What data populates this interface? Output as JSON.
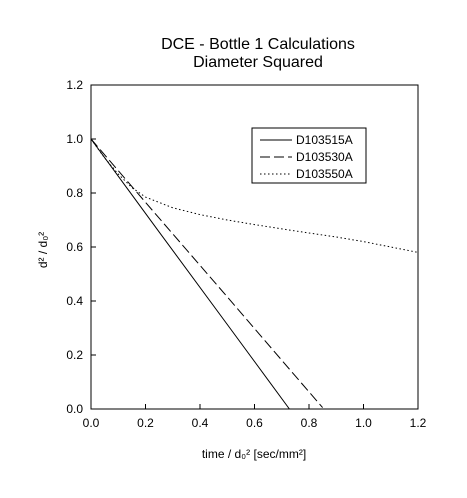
{
  "chart_data": {
    "type": "line",
    "title": "DCE - Bottle 1 Calculations",
    "subtitle": "Diameter Squared",
    "xlabel": "time / d₀² [sec/mm²]",
    "ylabel": "d² / d₀²",
    "xlim": [
      0.0,
      1.2
    ],
    "ylim": [
      0.0,
      1.2
    ],
    "xticks": [
      "0.0",
      "0.2",
      "0.4",
      "0.6",
      "0.8",
      "1.0",
      "1.2"
    ],
    "yticks": [
      "0.0",
      "0.2",
      "0.4",
      "0.6",
      "0.8",
      "1.0",
      "1.2"
    ],
    "grid": false,
    "legend_position": "top-right",
    "series": [
      {
        "name": "D103515A",
        "style": "solid",
        "color": "#000000",
        "x": [
          0.0,
          0.25,
          0.5,
          0.728
        ],
        "y": [
          1.0,
          0.656,
          0.313,
          0.0
        ]
      },
      {
        "name": "D103530A",
        "style": "long-dash",
        "color": "#000000",
        "x": [
          0.0,
          0.25,
          0.5,
          0.75,
          0.85
        ],
        "y": [
          1.0,
          0.707,
          0.415,
          0.122,
          0.005
        ]
      },
      {
        "name": "D103550A",
        "style": "dotted",
        "color": "#000000",
        "x": [
          0.0,
          0.05,
          0.1,
          0.15,
          0.2,
          0.3,
          0.4,
          0.5,
          0.6,
          0.7,
          0.8,
          0.9,
          1.0,
          1.1,
          1.2
        ],
        "y": [
          1.0,
          0.93,
          0.87,
          0.82,
          0.785,
          0.745,
          0.72,
          0.7,
          0.683,
          0.667,
          0.652,
          0.637,
          0.62,
          0.6,
          0.58
        ]
      }
    ]
  }
}
